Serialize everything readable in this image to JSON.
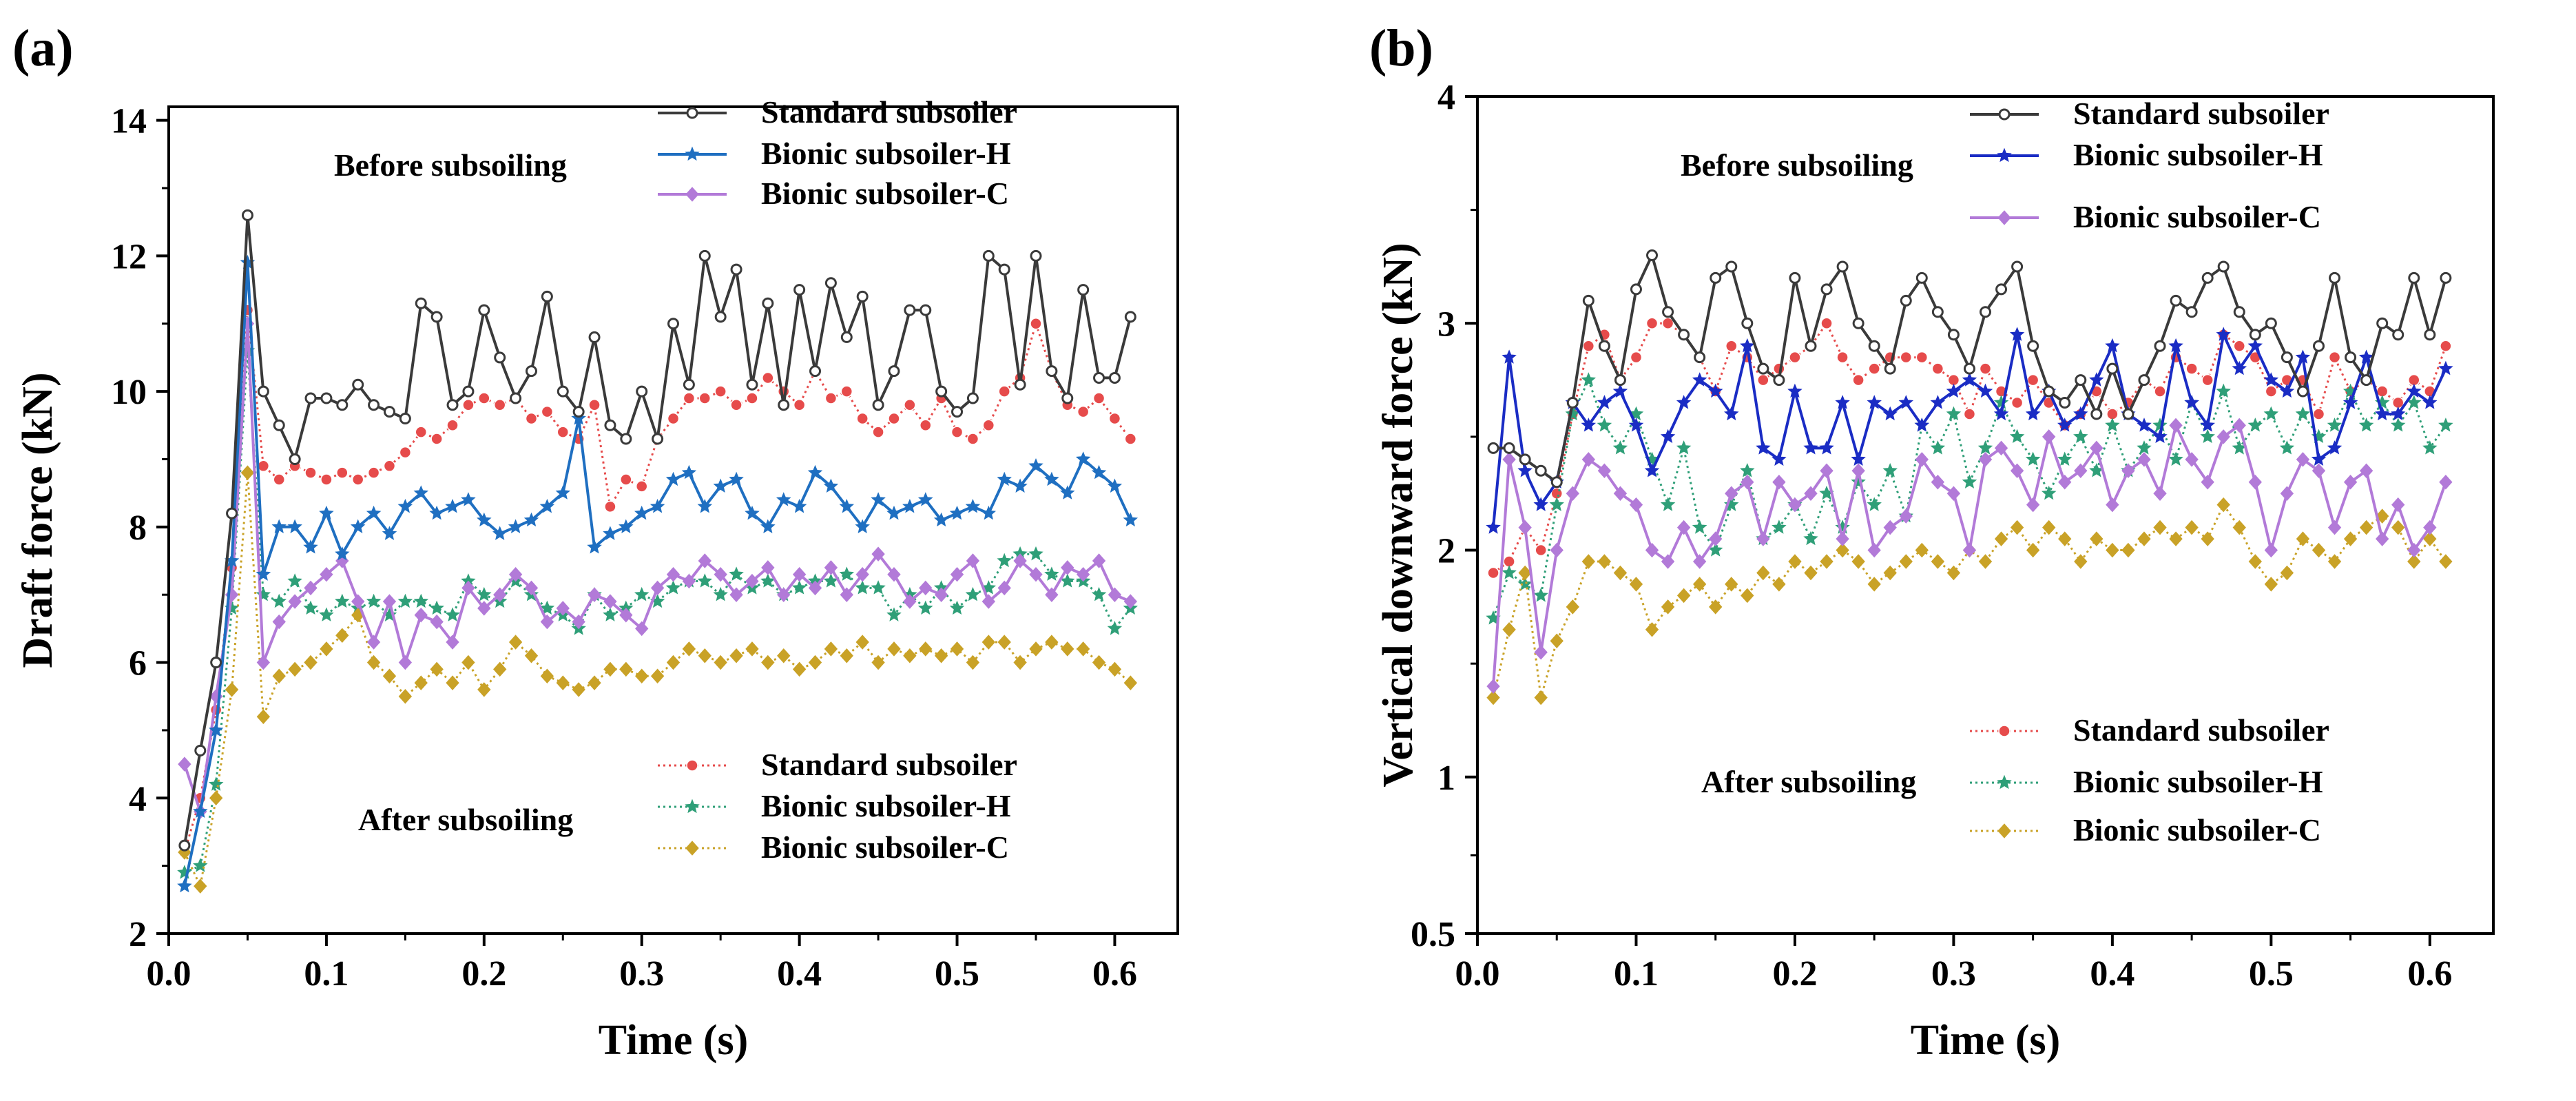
{
  "chart_data": [
    {
      "type": "line",
      "panel_label": "(a)",
      "xlabel": "Time (s)",
      "ylabel": "Draft force (kN)",
      "xlim": [
        0.0,
        0.64
      ],
      "ylim": [
        2,
        14.2
      ],
      "xticks": [
        0.0,
        0.1,
        0.2,
        0.3,
        0.4,
        0.5,
        0.6
      ],
      "xtick_labels": [
        "0.0",
        "0.1",
        "0.2",
        "0.3",
        "0.4",
        "0.5",
        "0.6"
      ],
      "yticks": [
        2,
        4,
        6,
        8,
        10,
        12,
        14
      ],
      "ytick_labels": [
        "2",
        "4",
        "6",
        "8",
        "10",
        "12",
        "14"
      ],
      "legend_groups": [
        {
          "label": "Before subsoiling",
          "entries": [
            "Standard subsoiler",
            "Bionic subsoiler-H",
            "Bionic subsoiler-C"
          ]
        },
        {
          "label": "After subsoiling",
          "entries": [
            "Standard subsoiler",
            "Bionic subsoiler-H",
            "Bionic subsoiler-C"
          ]
        }
      ],
      "series": [
        {
          "name": "Standard subsoiler",
          "group": "Before subsoiling",
          "color": "#3a3a3a",
          "marker": "circle-open",
          "style": "solid",
          "values": [
            3.3,
            4.7,
            6.0,
            8.2,
            12.6,
            10.0,
            9.5,
            9.0,
            9.9,
            9.9,
            9.8,
            10.1,
            9.8,
            9.7,
            9.6,
            11.3,
            11.1,
            9.8,
            10.0,
            11.2,
            10.5,
            9.9,
            10.3,
            11.4,
            10.0,
            9.7,
            10.8,
            9.5,
            9.3,
            10.0,
            9.3,
            11.0,
            10.1,
            12.0,
            11.1,
            11.8,
            10.1,
            11.3,
            9.8,
            11.5,
            10.3,
            11.6,
            10.8,
            11.4,
            9.8,
            10.3,
            11.2,
            11.2,
            10.0,
            9.7,
            9.9,
            12.0,
            11.8,
            10.1,
            12.0,
            10.3,
            9.9,
            11.5,
            10.2,
            10.2,
            11.1
          ]
        },
        {
          "name": "Bionic subsoiler-H",
          "group": "Before subsoiling",
          "color": "#1f6fc1",
          "marker": "star",
          "style": "solid",
          "values": [
            2.7,
            3.8,
            5.0,
            7.5,
            11.9,
            7.3,
            8.0,
            8.0,
            7.7,
            8.2,
            7.6,
            8.0,
            8.2,
            7.9,
            8.3,
            8.5,
            8.2,
            8.3,
            8.4,
            8.1,
            7.9,
            8.0,
            8.1,
            8.3,
            8.5,
            9.6,
            7.7,
            7.9,
            8.0,
            8.2,
            8.3,
            8.7,
            8.8,
            8.3,
            8.6,
            8.7,
            8.2,
            8.0,
            8.4,
            8.3,
            8.8,
            8.6,
            8.3,
            8.0,
            8.4,
            8.2,
            8.3,
            8.4,
            8.1,
            8.2,
            8.3,
            8.2,
            8.7,
            8.6,
            8.9,
            8.7,
            8.5,
            9.0,
            8.8,
            8.6,
            8.1
          ]
        },
        {
          "name": "Bionic subsoiler-C",
          "group": "Before subsoiling",
          "color": "#b27ad8",
          "marker": "diamond",
          "style": "solid",
          "values": [
            4.5,
            3.8,
            5.5,
            7.0,
            11.0,
            6.0,
            6.6,
            6.9,
            7.1,
            7.3,
            7.5,
            6.9,
            6.3,
            6.9,
            6.0,
            6.7,
            6.6,
            6.3,
            7.1,
            6.8,
            7.0,
            7.3,
            7.1,
            6.6,
            6.8,
            6.6,
            7.0,
            6.9,
            6.7,
            6.5,
            7.1,
            7.3,
            7.2,
            7.5,
            7.3,
            7.0,
            7.2,
            7.4,
            7.0,
            7.3,
            7.1,
            7.4,
            7.0,
            7.3,
            7.6,
            7.3,
            6.9,
            7.1,
            7.0,
            7.3,
            7.5,
            6.9,
            7.1,
            7.5,
            7.3,
            7.0,
            7.4,
            7.3,
            7.5,
            7.0,
            6.9
          ]
        },
        {
          "name": "Standard subsoiler",
          "group": "After subsoiling",
          "color": "#e64b4b",
          "marker": "circle-filled",
          "style": "dotted",
          "values": [
            3.2,
            4.0,
            5.3,
            7.4,
            11.2,
            8.9,
            8.7,
            8.9,
            8.8,
            8.7,
            8.8,
            8.7,
            8.8,
            8.9,
            9.1,
            9.4,
            9.3,
            9.5,
            9.8,
            9.9,
            9.8,
            9.9,
            9.6,
            9.7,
            9.4,
            9.3,
            9.8,
            8.3,
            8.7,
            8.6,
            9.3,
            9.6,
            9.9,
            9.9,
            10.0,
            9.8,
            9.9,
            10.2,
            10.0,
            9.8,
            10.3,
            9.9,
            10.0,
            9.6,
            9.4,
            9.6,
            9.8,
            9.5,
            9.9,
            9.4,
            9.3,
            9.5,
            10.0,
            10.2,
            11.0,
            10.3,
            9.8,
            9.7,
            9.9,
            9.6,
            9.3
          ]
        },
        {
          "name": "Bionic subsoiler-H",
          "group": "After subsoiling",
          "color": "#2f9f78",
          "marker": "star",
          "style": "dotted",
          "values": [
            2.9,
            3.0,
            4.2,
            6.8,
            10.6,
            7.0,
            6.9,
            7.2,
            6.8,
            6.7,
            6.9,
            6.8,
            6.9,
            6.7,
            6.9,
            6.9,
            6.8,
            6.7,
            7.2,
            7.0,
            6.9,
            7.2,
            7.0,
            6.8,
            6.7,
            6.5,
            7.0,
            6.7,
            6.8,
            7.0,
            6.9,
            7.1,
            7.2,
            7.2,
            7.0,
            7.3,
            7.1,
            7.2,
            7.0,
            7.1,
            7.2,
            7.2,
            7.3,
            7.1,
            7.1,
            6.7,
            7.0,
            6.8,
            7.1,
            6.8,
            7.0,
            7.1,
            7.5,
            7.6,
            7.6,
            7.3,
            7.2,
            7.2,
            7.0,
            6.5,
            6.8
          ]
        },
        {
          "name": "Bionic subsoiler-C",
          "group": "After subsoiling",
          "color": "#c9a227",
          "marker": "diamond",
          "style": "dotted",
          "values": [
            3.2,
            2.7,
            4.0,
            5.6,
            8.8,
            5.2,
            5.8,
            5.9,
            6.0,
            6.2,
            6.4,
            6.7,
            6.0,
            5.8,
            5.5,
            5.7,
            5.9,
            5.7,
            6.0,
            5.6,
            5.9,
            6.3,
            6.1,
            5.8,
            5.7,
            5.6,
            5.7,
            5.9,
            5.9,
            5.8,
            5.8,
            6.0,
            6.2,
            6.1,
            6.0,
            6.1,
            6.2,
            6.0,
            6.1,
            5.9,
            6.0,
            6.2,
            6.1,
            6.3,
            6.0,
            6.2,
            6.1,
            6.2,
            6.1,
            6.2,
            6.0,
            6.3,
            6.3,
            6.0,
            6.2,
            6.3,
            6.2,
            6.2,
            6.0,
            5.9,
            5.7
          ]
        }
      ]
    },
    {
      "type": "line",
      "panel_label": "(b)",
      "xlabel": "Time (s)",
      "ylabel": "Vertical downward force (kN)",
      "xlim": [
        0.0,
        0.64
      ],
      "ylim": [
        0.5,
        4.0
      ],
      "xticks": [
        0.0,
        0.1,
        0.2,
        0.3,
        0.4,
        0.5,
        0.6
      ],
      "xtick_labels": [
        "0.0",
        "0.1",
        "0.2",
        "0.3",
        "0.4",
        "0.5",
        "0.6"
      ],
      "yticks": [
        0.5,
        1,
        2,
        3,
        4
      ],
      "ytick_labels": [
        "0.5",
        "1",
        "2",
        "3",
        "4"
      ],
      "legend_groups": [
        {
          "label": "Before subsoiling",
          "entries": [
            "Standard subsoiler",
            "Bionic subsoiler-H",
            "Bionic subsoiler-C"
          ]
        },
        {
          "label": "After subsoiling",
          "entries": [
            "Standard subsoiler",
            "Bionic subsoiler-H",
            "Bionic subsoiler-C"
          ]
        }
      ],
      "series": [
        {
          "name": "Standard subsoiler",
          "group": "Before subsoiling",
          "color": "#3a3a3a",
          "marker": "circle-open",
          "style": "solid",
          "values": [
            2.45,
            2.45,
            2.4,
            2.35,
            2.3,
            2.65,
            3.1,
            2.9,
            2.75,
            3.15,
            3.3,
            3.05,
            2.95,
            2.85,
            3.2,
            3.25,
            3.0,
            2.8,
            2.75,
            3.2,
            2.9,
            3.15,
            3.25,
            3.0,
            2.9,
            2.8,
            3.1,
            3.2,
            3.05,
            2.95,
            2.8,
            3.05,
            3.15,
            3.25,
            2.9,
            2.7,
            2.65,
            2.75,
            2.6,
            2.8,
            2.6,
            2.75,
            2.9,
            3.1,
            3.05,
            3.2,
            3.25,
            3.05,
            2.95,
            3.0,
            2.85,
            2.7,
            2.9,
            3.2,
            2.85,
            2.75,
            3.0,
            2.95,
            3.2,
            2.95,
            3.2
          ]
        },
        {
          "name": "Bionic subsoiler-H",
          "group": "Before subsoiling",
          "color": "#1a2cc4",
          "marker": "star",
          "style": "solid",
          "values": [
            2.1,
            2.85,
            2.35,
            2.2,
            2.3,
            2.65,
            2.55,
            2.65,
            2.7,
            2.55,
            2.35,
            2.5,
            2.65,
            2.75,
            2.7,
            2.6,
            2.9,
            2.45,
            2.4,
            2.7,
            2.45,
            2.45,
            2.65,
            2.4,
            2.65,
            2.6,
            2.65,
            2.55,
            2.65,
            2.7,
            2.75,
            2.7,
            2.6,
            2.95,
            2.6,
            2.7,
            2.55,
            2.6,
            2.75,
            2.9,
            2.6,
            2.55,
            2.5,
            2.9,
            2.65,
            2.55,
            2.95,
            2.8,
            2.9,
            2.75,
            2.7,
            2.85,
            2.4,
            2.45,
            2.65,
            2.85,
            2.6,
            2.6,
            2.7,
            2.65,
            2.8
          ]
        },
        {
          "name": "Bionic subsoiler-C",
          "group": "Before subsoiling",
          "color": "#b27ad8",
          "marker": "diamond",
          "style": "solid",
          "values": [
            1.4,
            2.4,
            2.1,
            1.55,
            2.0,
            2.25,
            2.4,
            2.35,
            2.25,
            2.2,
            2.0,
            1.95,
            2.1,
            1.95,
            2.05,
            2.25,
            2.3,
            2.05,
            2.3,
            2.2,
            2.25,
            2.35,
            2.05,
            2.35,
            2.0,
            2.1,
            2.15,
            2.4,
            2.3,
            2.25,
            2.0,
            2.4,
            2.45,
            2.35,
            2.2,
            2.5,
            2.3,
            2.35,
            2.45,
            2.2,
            2.35,
            2.4,
            2.25,
            2.55,
            2.4,
            2.3,
            2.5,
            2.55,
            2.3,
            2.0,
            2.25,
            2.4,
            2.35,
            2.1,
            2.3,
            2.35,
            2.05,
            2.2,
            2.0,
            2.1,
            2.3
          ]
        },
        {
          "name": "Standard subsoiler",
          "group": "After subsoiling",
          "color": "#e64b4b",
          "marker": "circle-filled",
          "style": "dotted",
          "values": [
            1.9,
            1.95,
            2.1,
            2.0,
            2.25,
            2.6,
            2.9,
            2.95,
            2.75,
            2.85,
            3.0,
            3.0,
            2.95,
            2.85,
            2.7,
            2.9,
            2.85,
            2.75,
            2.8,
            2.85,
            2.9,
            3.0,
            2.85,
            2.75,
            2.8,
            2.85,
            2.85,
            2.85,
            2.8,
            2.75,
            2.6,
            2.8,
            2.7,
            2.65,
            2.75,
            2.65,
            2.55,
            2.6,
            2.7,
            2.6,
            2.65,
            2.75,
            2.7,
            2.85,
            2.8,
            2.75,
            2.95,
            2.9,
            2.85,
            2.7,
            2.75,
            2.75,
            2.6,
            2.85,
            2.7,
            2.75,
            2.7,
            2.65,
            2.75,
            2.7,
            2.9
          ]
        },
        {
          "name": "Bionic subsoiler-H",
          "group": "After subsoiling",
          "color": "#2f9f78",
          "marker": "star",
          "style": "dotted",
          "values": [
            1.7,
            1.9,
            1.85,
            1.8,
            2.2,
            2.6,
            2.75,
            2.55,
            2.45,
            2.6,
            2.4,
            2.2,
            2.45,
            2.1,
            2.0,
            2.2,
            2.35,
            2.05,
            2.1,
            2.2,
            2.05,
            2.25,
            2.1,
            2.3,
            2.2,
            2.35,
            2.15,
            2.55,
            2.45,
            2.6,
            2.3,
            2.45,
            2.65,
            2.5,
            2.4,
            2.25,
            2.4,
            2.5,
            2.35,
            2.55,
            2.35,
            2.45,
            2.55,
            2.4,
            2.65,
            2.5,
            2.7,
            2.45,
            2.55,
            2.6,
            2.45,
            2.6,
            2.5,
            2.55,
            2.7,
            2.55,
            2.65,
            2.55,
            2.65,
            2.45,
            2.55
          ]
        },
        {
          "name": "Bionic subsoiler-C",
          "group": "After subsoiling",
          "color": "#c9a227",
          "marker": "diamond",
          "style": "dotted",
          "values": [
            1.35,
            1.65,
            1.9,
            1.35,
            1.6,
            1.75,
            1.95,
            1.95,
            1.9,
            1.85,
            1.65,
            1.75,
            1.8,
            1.85,
            1.75,
            1.85,
            1.8,
            1.9,
            1.85,
            1.95,
            1.9,
            1.95,
            2.0,
            1.95,
            1.85,
            1.9,
            1.95,
            2.0,
            1.95,
            1.9,
            2.0,
            1.95,
            2.05,
            2.1,
            2.0,
            2.1,
            2.05,
            1.95,
            2.05,
            2.0,
            2.0,
            2.05,
            2.1,
            2.05,
            2.1,
            2.05,
            2.2,
            2.1,
            1.95,
            1.85,
            1.9,
            2.05,
            2.0,
            1.95,
            2.05,
            2.1,
            2.15,
            2.1,
            1.95,
            2.05,
            1.95
          ]
        }
      ]
    }
  ]
}
